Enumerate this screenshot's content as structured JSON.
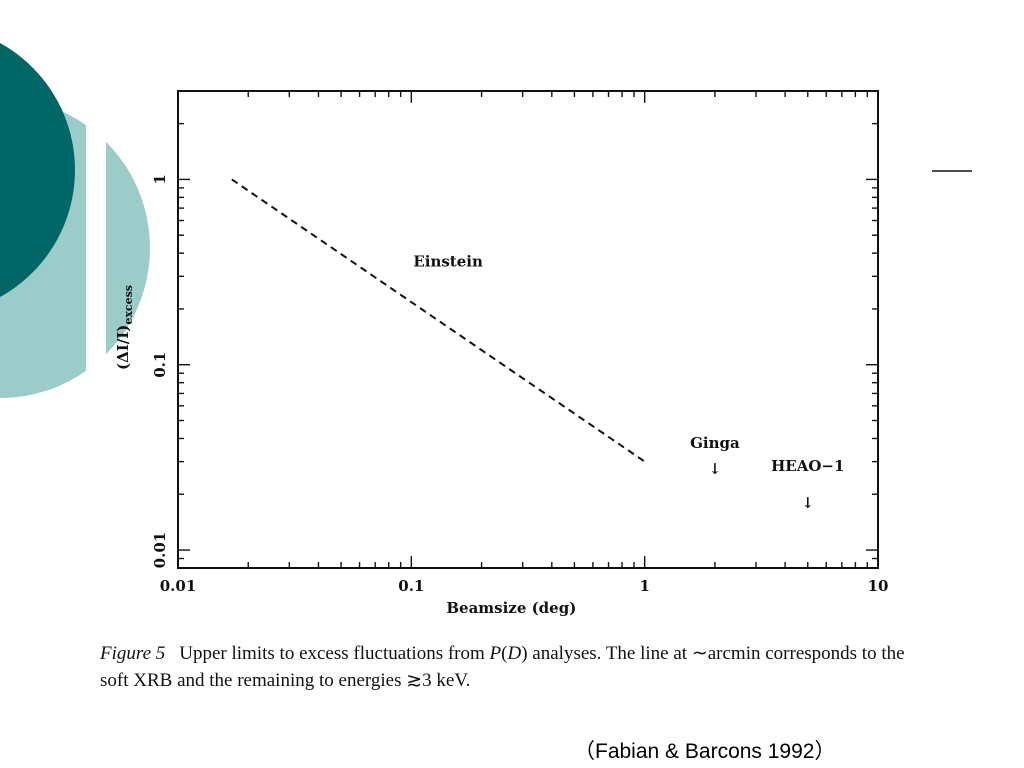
{
  "theme": {
    "dark_teal": "#006766",
    "light_teal": "#9cccc9",
    "ink": "#111111"
  },
  "chart_data": {
    "type": "line",
    "log_x": true,
    "log_y": true,
    "xlim": [
      0.01,
      10
    ],
    "ylim": [
      0.008,
      3
    ],
    "xticks": [
      0.01,
      0.1,
      1,
      10
    ],
    "xtick_labels": [
      "0.01",
      "0.1",
      "1",
      "10"
    ],
    "yticks": [
      0.01,
      0.1,
      1
    ],
    "ytick_labels": [
      "0.01",
      "0.1",
      "1"
    ],
    "xlabel": "Beamsize (deg)",
    "ylabel_main": "(ΔI/I)",
    "ylabel_sub": "excess",
    "series": [
      {
        "name": "Einstein",
        "style": "dashed",
        "x": [
          0.017,
          1.0
        ],
        "y": [
          1.0,
          0.03
        ]
      }
    ],
    "upper_limits": [
      {
        "name": "Ginga",
        "x": 2.0,
        "y": 0.027
      },
      {
        "name": "HEAO−1",
        "x": 5.0,
        "y": 0.0175
      }
    ],
    "arrow_glyph": "↓",
    "grid": false
  },
  "caption": {
    "figure_label": "Figure 5",
    "part1": "Upper limits to excess fluctuations from ",
    "pd": "P",
    "part2": "(",
    "pd_d": "D",
    "part3": ") analyses. The line at ∼arcmin corresponds to the soft XRB and the remaining to energies ≳3 keV."
  },
  "source_note": "（Fabian & Barcons 1992）"
}
